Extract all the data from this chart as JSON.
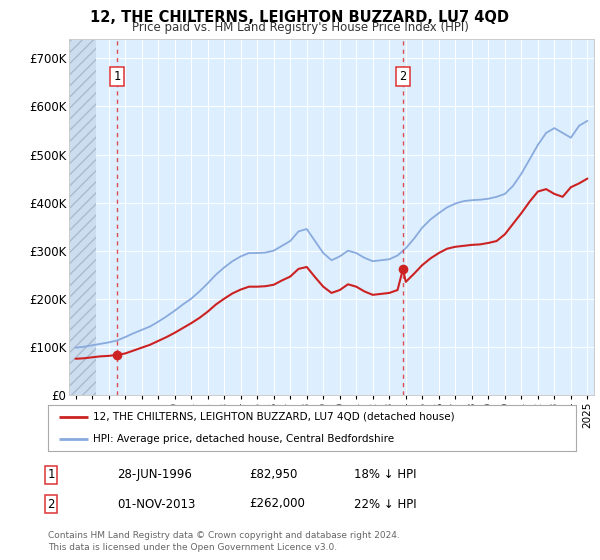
{
  "title": "12, THE CHILTERNS, LEIGHTON BUZZARD, LU7 4QD",
  "subtitle": "Price paid vs. HM Land Registry's House Price Index (HPI)",
  "ylabel_ticks": [
    "£0",
    "£100K",
    "£200K",
    "£300K",
    "£400K",
    "£500K",
    "£600K",
    "£700K"
  ],
  "ytick_values": [
    0,
    100000,
    200000,
    300000,
    400000,
    500000,
    600000,
    700000
  ],
  "ylim": [
    0,
    740000
  ],
  "xlim_start": 1993.6,
  "xlim_end": 2025.4,
  "background_plot": "#ddeeff",
  "background_hatch_color": "#ccddf0",
  "line_red_color": "#cc2222",
  "line_blue_color": "#88aadd",
  "dashed_red_color": "#dd3333",
  "point1_x": 1996.49,
  "point1_y": 82950,
  "point2_x": 2013.83,
  "point2_y": 262000,
  "vline1_x": 1996.49,
  "vline2_x": 2013.83,
  "legend_label_red": "12, THE CHILTERNS, LEIGHTON BUZZARD, LU7 4QD (detached house)",
  "legend_label_blue": "HPI: Average price, detached house, Central Bedfordshire",
  "table_row1": [
    "1",
    "28-JUN-1996",
    "£82,950",
    "18% ↓ HPI"
  ],
  "table_row2": [
    "2",
    "01-NOV-2013",
    "£262,000",
    "22% ↓ HPI"
  ],
  "footer": "Contains HM Land Registry data © Crown copyright and database right 2024.\nThis data is licensed under the Open Government Licence v3.0.",
  "hpi_years": [
    1994.0,
    1994.5,
    1995.0,
    1995.5,
    1996.0,
    1996.5,
    1997.0,
    1997.5,
    1998.0,
    1998.5,
    1999.0,
    1999.5,
    2000.0,
    2000.5,
    2001.0,
    2001.5,
    2002.0,
    2002.5,
    2003.0,
    2003.5,
    2004.0,
    2004.5,
    2005.0,
    2005.5,
    2006.0,
    2006.5,
    2007.0,
    2007.5,
    2008.0,
    2008.5,
    2009.0,
    2009.5,
    2010.0,
    2010.5,
    2011.0,
    2011.5,
    2012.0,
    2012.5,
    2013.0,
    2013.5,
    2014.0,
    2014.5,
    2015.0,
    2015.5,
    2016.0,
    2016.5,
    2017.0,
    2017.5,
    2018.0,
    2018.5,
    2019.0,
    2019.5,
    2020.0,
    2020.5,
    2021.0,
    2021.5,
    2022.0,
    2022.5,
    2023.0,
    2023.5,
    2024.0,
    2024.5,
    2025.0
  ],
  "hpi_values": [
    98000,
    100000,
    103000,
    106000,
    109000,
    113000,
    120000,
    128000,
    135000,
    142000,
    152000,
    163000,
    175000,
    188000,
    200000,
    215000,
    232000,
    250000,
    265000,
    278000,
    288000,
    295000,
    295000,
    296000,
    300000,
    310000,
    320000,
    340000,
    345000,
    320000,
    295000,
    280000,
    288000,
    300000,
    295000,
    285000,
    278000,
    280000,
    282000,
    290000,
    305000,
    325000,
    348000,
    365000,
    378000,
    390000,
    398000,
    403000,
    405000,
    406000,
    408000,
    412000,
    418000,
    435000,
    460000,
    490000,
    520000,
    545000,
    555000,
    545000,
    535000,
    560000,
    570000
  ],
  "red_years": [
    1994.0,
    1994.5,
    1995.0,
    1995.5,
    1996.0,
    1996.49,
    1997.0,
    1997.5,
    1998.0,
    1998.5,
    1999.0,
    1999.5,
    2000.0,
    2000.5,
    2001.0,
    2001.5,
    2002.0,
    2002.5,
    2003.0,
    2003.5,
    2004.0,
    2004.5,
    2005.0,
    2005.5,
    2006.0,
    2006.5,
    2007.0,
    2007.5,
    2008.0,
    2008.5,
    2009.0,
    2009.5,
    2010.0,
    2010.5,
    2011.0,
    2011.5,
    2012.0,
    2012.5,
    2013.0,
    2013.5,
    2013.83,
    2014.0,
    2014.5,
    2015.0,
    2015.5,
    2016.0,
    2016.5,
    2017.0,
    2017.5,
    2018.0,
    2018.5,
    2019.0,
    2019.5,
    2020.0,
    2020.5,
    2021.0,
    2021.5,
    2022.0,
    2022.5,
    2023.0,
    2023.5,
    2024.0,
    2024.5,
    2025.0
  ],
  "red_values": [
    75000,
    76000,
    78000,
    80000,
    81000,
    82950,
    86000,
    92000,
    98000,
    104000,
    112000,
    120000,
    129000,
    139000,
    149000,
    160000,
    173000,
    188000,
    200000,
    211000,
    219000,
    225000,
    225000,
    226000,
    229000,
    238000,
    246000,
    262000,
    266000,
    245000,
    225000,
    212000,
    218000,
    230000,
    225000,
    215000,
    208000,
    210000,
    212000,
    218000,
    262000,
    235000,
    252000,
    270000,
    284000,
    295000,
    304000,
    308000,
    310000,
    312000,
    313000,
    316000,
    320000,
    334000,
    356000,
    378000,
    402000,
    423000,
    428000,
    418000,
    412000,
    432000,
    440000,
    450000
  ],
  "xtick_years": [
    1994,
    1995,
    1996,
    1997,
    1998,
    1999,
    2000,
    2001,
    2002,
    2003,
    2004,
    2005,
    2006,
    2007,
    2008,
    2009,
    2010,
    2011,
    2012,
    2013,
    2014,
    2015,
    2016,
    2017,
    2018,
    2019,
    2020,
    2021,
    2022,
    2023,
    2024,
    2025
  ]
}
